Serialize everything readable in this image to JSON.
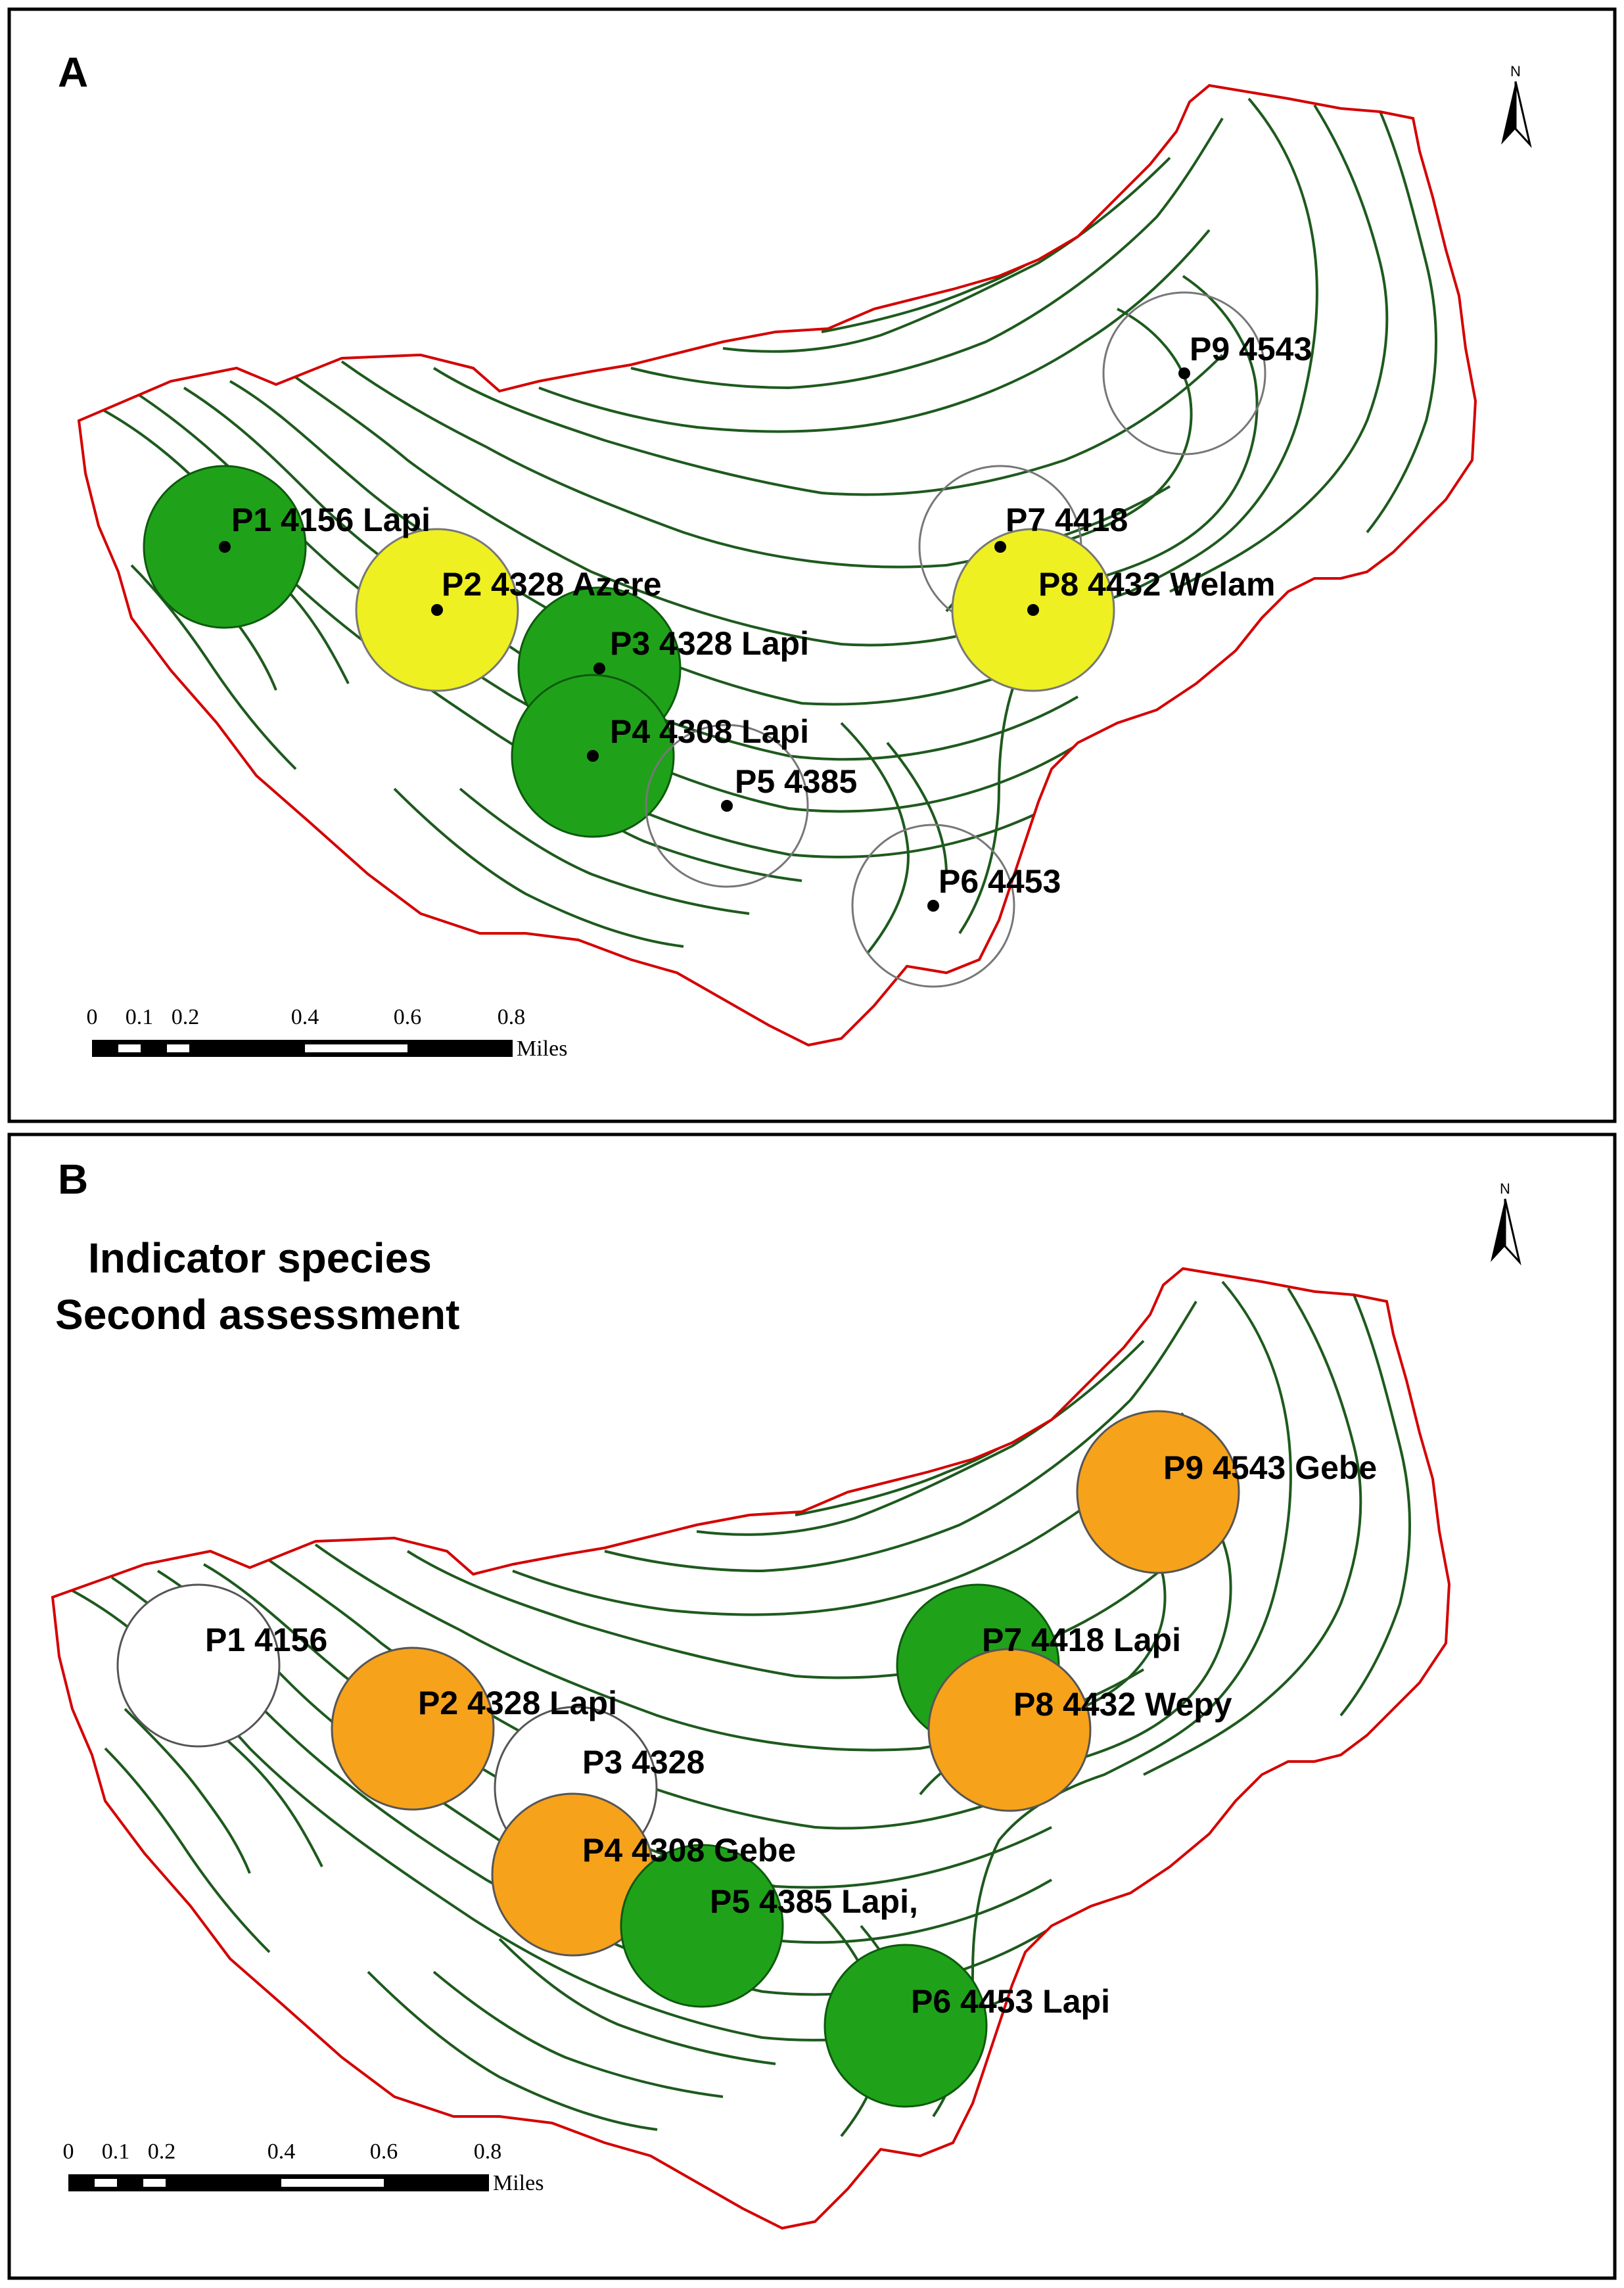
{
  "colors": {
    "boundary": "#d40000",
    "contour": "#1e5a1e",
    "green": "#1fa21a",
    "yellow": "#eef022",
    "orange": "#f7a21b",
    "white": "#ffffff",
    "frame": "#000000"
  },
  "icons": {
    "north_arrow": "north-arrow-icon",
    "plot_point": "dot-icon"
  },
  "scale_bar": {
    "ticks": [
      "0",
      "0.1",
      "0.2",
      "0.4",
      "0.6",
      "0.8"
    ],
    "unit": "Miles"
  },
  "panel_a": {
    "letter": "A",
    "north": "N",
    "plots": [
      {
        "label": "P1 4156 Lapi",
        "fill": "green"
      },
      {
        "label": "P2 4328 Azcre",
        "fill": "yellow"
      },
      {
        "label": "P3 4328 Lapi",
        "fill": "green"
      },
      {
        "label": "P4 4308 Lapi",
        "fill": "green"
      },
      {
        "label": "P5 4385",
        "fill": "none"
      },
      {
        "label": "P6 4453",
        "fill": "none"
      },
      {
        "label": "P7 4418",
        "fill": "none"
      },
      {
        "label": "P8 4432 Welam",
        "fill": "yellow"
      },
      {
        "label": "P9 4543",
        "fill": "none"
      }
    ]
  },
  "panel_b": {
    "letter": "B",
    "north": "N",
    "title_line1": "Indicator species",
    "title_line2": "Second assessment",
    "plots": [
      {
        "label": "P1 4156",
        "fill": "white"
      },
      {
        "label": "P2 4328 Lapi",
        "fill": "orange"
      },
      {
        "label": "P3 4328",
        "fill": "white"
      },
      {
        "label": "P4 4308 Gebe",
        "fill": "orange"
      },
      {
        "label": "P5 4385 Lapi,",
        "fill": "green"
      },
      {
        "label": "P6 4453 Lapi",
        "fill": "green"
      },
      {
        "label": "P7 4418 Lapi",
        "fill": "green"
      },
      {
        "label": "P8 4432 Wepy",
        "fill": "orange"
      },
      {
        "label": "P9 4543 Gebe",
        "fill": "orange"
      }
    ]
  }
}
